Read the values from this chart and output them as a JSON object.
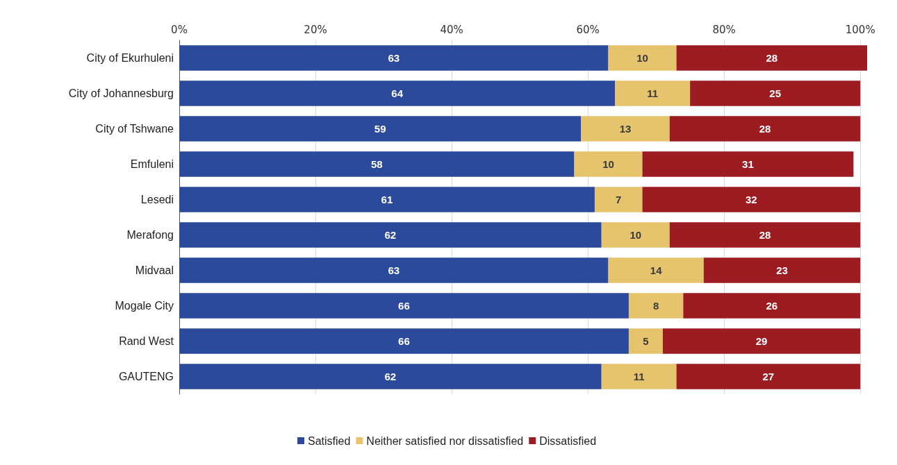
{
  "chart_data": {
    "type": "bar",
    "orientation": "horizontal",
    "stacked": true,
    "categories": [
      "City of Ekurhuleni",
      "City of Johannesburg",
      "City of Tshwane",
      "Emfuleni",
      "Lesedi",
      "Merafong",
      "Midvaal",
      "Mogale City",
      "Rand West",
      "GAUTENG"
    ],
    "series": [
      {
        "name": "Satisfied",
        "color": "#2b4a9b",
        "values": [
          63,
          64,
          59,
          58,
          61,
          62,
          63,
          66,
          66,
          62
        ]
      },
      {
        "name": "Neither satisfied nor dissatisfied",
        "color": "#e6c46e",
        "values": [
          10,
          11,
          13,
          10,
          7,
          10,
          14,
          8,
          5,
          11
        ]
      },
      {
        "name": "Dissatisfied",
        "color": "#9c1c22",
        "values": [
          28,
          25,
          28,
          31,
          32,
          28,
          23,
          26,
          29,
          27
        ]
      }
    ],
    "xlim": [
      0,
      101
    ],
    "xticks": [
      {
        "value": 0,
        "label": "0%"
      },
      {
        "value": 20,
        "label": "20%"
      },
      {
        "value": 40,
        "label": "40%"
      },
      {
        "value": 60,
        "label": "60%"
      },
      {
        "value": 80,
        "label": "80%"
      },
      {
        "value": 100,
        "label": "100%"
      }
    ],
    "grid": "x",
    "legend": "bottom",
    "data_labels": true
  }
}
